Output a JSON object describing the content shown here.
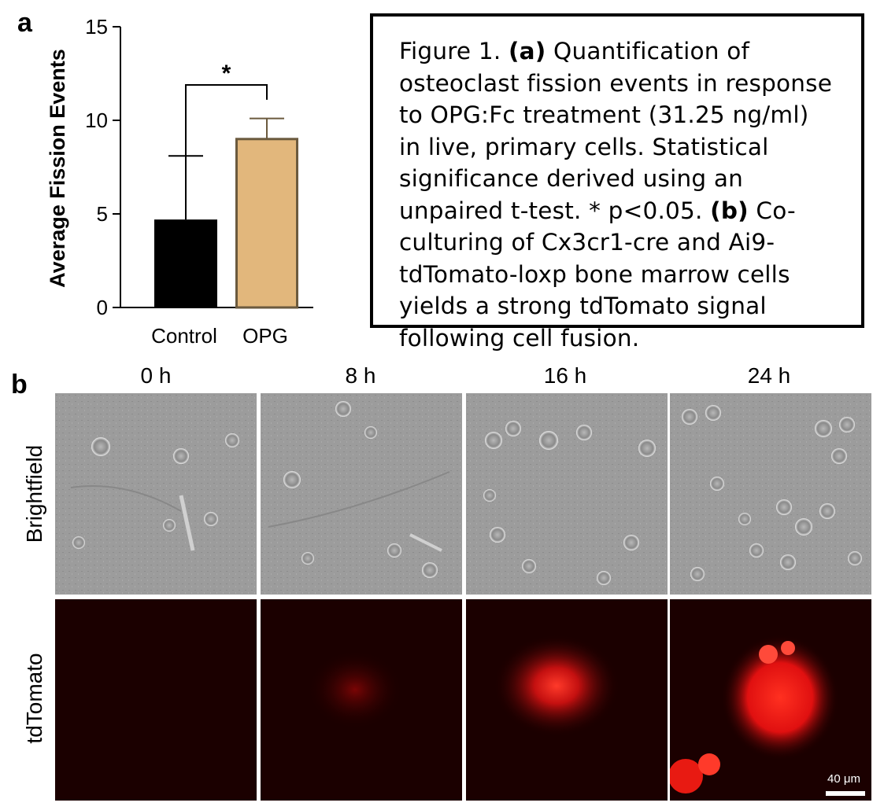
{
  "panel_a": {
    "label": "a"
  },
  "panel_b": {
    "label": "b"
  },
  "chart_data": {
    "type": "bar",
    "categories": [
      "Control",
      "OPG"
    ],
    "values": [
      4.7,
      9.0
    ],
    "error_bars": [
      3.4,
      1.1
    ],
    "ylabel": "Average Fission Events",
    "xlabel": "",
    "ylim": [
      0,
      15
    ],
    "yticks": [
      "0",
      "5",
      "10",
      "15"
    ],
    "bar_colors": [
      "#000000",
      "#e2b77c"
    ],
    "bar_edge_color": "#6b5a3e",
    "significance": "*"
  },
  "caption": {
    "prefix": "Figure 1. ",
    "a_tag": "(a)",
    "a_text": " Quantification of osteoclast fission events in response to OPG:Fc treatment (31.25 ng/ml) in live, primary cells. Statistical significance derived using an unpaired t-test. * p<0.05. ",
    "b_tag": "(b)",
    "b_text": " Co-culturing of Cx3cr1-cre and Ai9-tdTomato-loxp bone marrow cells yields a strong tdTomato signal following cell fusion."
  },
  "timepoints": [
    "0 h",
    "8 h",
    "16 h",
    "24 h"
  ],
  "rows": [
    "Brightfield",
    "tdTomato"
  ],
  "scale_bar": "40 μm"
}
